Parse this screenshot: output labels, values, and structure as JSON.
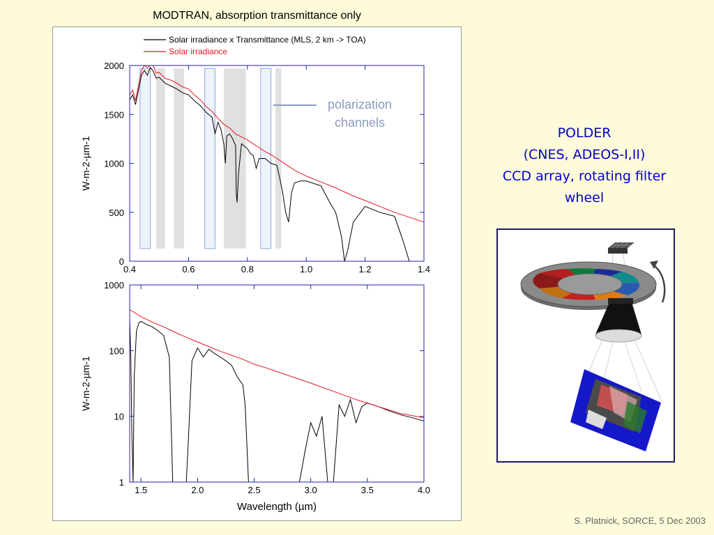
{
  "slide": {
    "title": "MODTRAN, absorption transmittance only",
    "instrument_lines": [
      "POLDER",
      "(CNES, ADEOS-I,II)",
      "CCD array, rotating filter",
      "wheel"
    ],
    "credit": "S. Platnick, SORCE, 5 Dec 2003",
    "annotation_lines": [
      "polarization",
      "channels"
    ],
    "colors": {
      "background": "#fdfbd9",
      "instrument_text": "#0000cc",
      "irradiance": "#e8141e",
      "transmitted": "#000000",
      "axis_frame": "#2222aa",
      "channel_band": "#e0e0e0",
      "polarization_band_fill": "#eef2fb",
      "polarization_band_edge": "#8fa6d8",
      "annotation": "#8a9bbd"
    }
  },
  "chart_data": [
    {
      "type": "line",
      "xlabel": "",
      "ylabel": "W-m-2-µm-1",
      "xlim": [
        0.4,
        1.4
      ],
      "ylim": [
        0,
        2000
      ],
      "yscale": "linear",
      "xticks": [
        "0.4",
        "0.6",
        "0.8",
        "1.0",
        "1.2",
        "1.4"
      ],
      "yticks": [
        "0",
        "500",
        "1000",
        "1500",
        "2000"
      ],
      "legend": [
        {
          "label": "Solar irradiance x Transmittance (MLS, 2 km -> TOA)",
          "color": "#000000"
        },
        {
          "label": "Solar irradiance",
          "color": "#e8141e"
        }
      ],
      "legend_position": "top",
      "bands": [
        {
          "range": [
            0.435,
            0.47
          ],
          "kind": "polarization"
        },
        {
          "range": [
            0.49,
            0.52
          ],
          "kind": "channel"
        },
        {
          "range": [
            0.55,
            0.585
          ],
          "kind": "channel"
        },
        {
          "range": [
            0.655,
            0.69
          ],
          "kind": "polarization"
        },
        {
          "range": [
            0.72,
            0.74
          ],
          "kind": "channel"
        },
        {
          "range": [
            0.74,
            0.78
          ],
          "kind": "channel"
        },
        {
          "range": [
            0.78,
            0.795
          ],
          "kind": "channel"
        },
        {
          "range": [
            0.845,
            0.88
          ],
          "kind": "polarization"
        },
        {
          "range": [
            0.895,
            0.915
          ],
          "kind": "channel"
        }
      ],
      "series": [
        {
          "name": "Solar irradiance",
          "color": "#e8141e",
          "x": [
            0.4,
            0.41,
            0.42,
            0.43,
            0.44,
            0.45,
            0.46,
            0.47,
            0.48,
            0.49,
            0.5,
            0.52,
            0.54,
            0.56,
            0.58,
            0.6,
            0.62,
            0.64,
            0.66,
            0.68,
            0.7,
            0.72,
            0.74,
            0.76,
            0.78,
            0.8,
            0.82,
            0.84,
            0.86,
            0.88,
            0.9,
            0.92,
            0.94,
            0.96,
            0.98,
            1.0,
            1.05,
            1.1,
            1.15,
            1.2,
            1.25,
            1.3,
            1.35,
            1.4
          ],
          "y": [
            1700,
            1750,
            1640,
            1800,
            1950,
            2020,
            1980,
            2050,
            2000,
            1920,
            1930,
            1870,
            1850,
            1820,
            1780,
            1760,
            1700,
            1650,
            1580,
            1530,
            1460,
            1400,
            1360,
            1300,
            1270,
            1240,
            1200,
            1160,
            1120,
            1090,
            1050,
            1010,
            970,
            930,
            900,
            870,
            810,
            750,
            680,
            620,
            560,
            500,
            450,
            400
          ]
        },
        {
          "name": "Solar irradiance x Transmittance (MLS, 2 km -> TOA)",
          "color": "#000000",
          "x": [
            0.4,
            0.41,
            0.42,
            0.43,
            0.44,
            0.45,
            0.46,
            0.47,
            0.48,
            0.49,
            0.5,
            0.52,
            0.54,
            0.56,
            0.58,
            0.6,
            0.62,
            0.64,
            0.66,
            0.68,
            0.69,
            0.7,
            0.71,
            0.72,
            0.725,
            0.73,
            0.74,
            0.75,
            0.76,
            0.762,
            0.765,
            0.77,
            0.78,
            0.8,
            0.81,
            0.82,
            0.83,
            0.84,
            0.86,
            0.88,
            0.9,
            0.91,
            0.92,
            0.93,
            0.94,
            0.95,
            0.96,
            0.98,
            1.0,
            1.05,
            1.08,
            1.1,
            1.12,
            1.13,
            1.14,
            1.16,
            1.2,
            1.25,
            1.3,
            1.33,
            1.35,
            1.36,
            1.38,
            1.4
          ],
          "y": [
            1650,
            1700,
            1600,
            1750,
            1900,
            1950,
            1900,
            1980,
            1940,
            1870,
            1880,
            1820,
            1790,
            1760,
            1720,
            1700,
            1640,
            1590,
            1520,
            1470,
            1300,
            1420,
            1350,
            1200,
            1000,
            1280,
            1300,
            1250,
            1180,
            700,
            600,
            900,
            1200,
            1150,
            1100,
            1080,
            950,
            1050,
            1050,
            1000,
            980,
            850,
            700,
            500,
            400,
            700,
            800,
            820,
            820,
            770,
            600,
            500,
            250,
            0,
            100,
            400,
            560,
            500,
            460,
            200,
            0,
            0,
            0,
            0
          ]
        }
      ]
    },
    {
      "type": "line",
      "xlabel": "Wavelength (µm)",
      "ylabel": "W-m-2-µm-1",
      "xlim": [
        1.4,
        4.0
      ],
      "ylim": [
        1,
        1000
      ],
      "yscale": "log",
      "xticks": [
        "1.5",
        "2.0",
        "2.5",
        "3.0",
        "3.5",
        "4.0"
      ],
      "yticks": [
        "1",
        "10",
        "100",
        "1000"
      ],
      "series": [
        {
          "name": "Solar irradiance",
          "color": "#e8141e",
          "x": [
            1.4,
            1.5,
            1.6,
            1.7,
            1.8,
            1.9,
            2.0,
            2.1,
            2.2,
            2.3,
            2.4,
            2.5,
            2.6,
            2.8,
            3.0,
            3.2,
            3.4,
            3.6,
            3.8,
            4.0
          ],
          "y": [
            420,
            330,
            270,
            230,
            190,
            160,
            135,
            115,
            98,
            85,
            74,
            62,
            55,
            42,
            32,
            24,
            18,
            14,
            11,
            9.5
          ]
        },
        {
          "name": "Solar irradiance x Transmittance (MLS, 2 km -> TOA)",
          "color": "#000000",
          "x": [
            1.4,
            1.41,
            1.42,
            1.43,
            1.44,
            1.46,
            1.48,
            1.5,
            1.55,
            1.6,
            1.65,
            1.7,
            1.75,
            1.78,
            1.8,
            1.82,
            1.85,
            1.88,
            1.9,
            1.92,
            1.95,
            2.0,
            2.05,
            2.1,
            2.15,
            2.2,
            2.25,
            2.3,
            2.35,
            2.4,
            2.42,
            2.45,
            2.48,
            2.5,
            2.52,
            2.55,
            2.6,
            2.7,
            2.8,
            2.85,
            2.88,
            2.9,
            2.95,
            3.0,
            3.05,
            3.1,
            3.15,
            3.2,
            3.25,
            3.3,
            3.35,
            3.4,
            3.45,
            3.5,
            3.6,
            3.7,
            3.8,
            3.9,
            4.0
          ],
          "y": [
            300,
            80,
            5,
            1,
            40,
            200,
            260,
            280,
            250,
            230,
            200,
            170,
            80,
            1,
            1,
            1,
            1,
            1,
            1,
            5,
            70,
            110,
            80,
            105,
            90,
            80,
            70,
            60,
            40,
            30,
            15,
            1,
            1,
            1,
            1,
            1,
            1,
            1,
            1,
            1,
            1,
            1,
            3,
            8,
            5,
            10,
            1,
            1,
            15,
            10,
            18,
            8,
            14,
            16,
            14,
            12,
            10.5,
            9.5,
            8.5
          ]
        }
      ]
    }
  ]
}
